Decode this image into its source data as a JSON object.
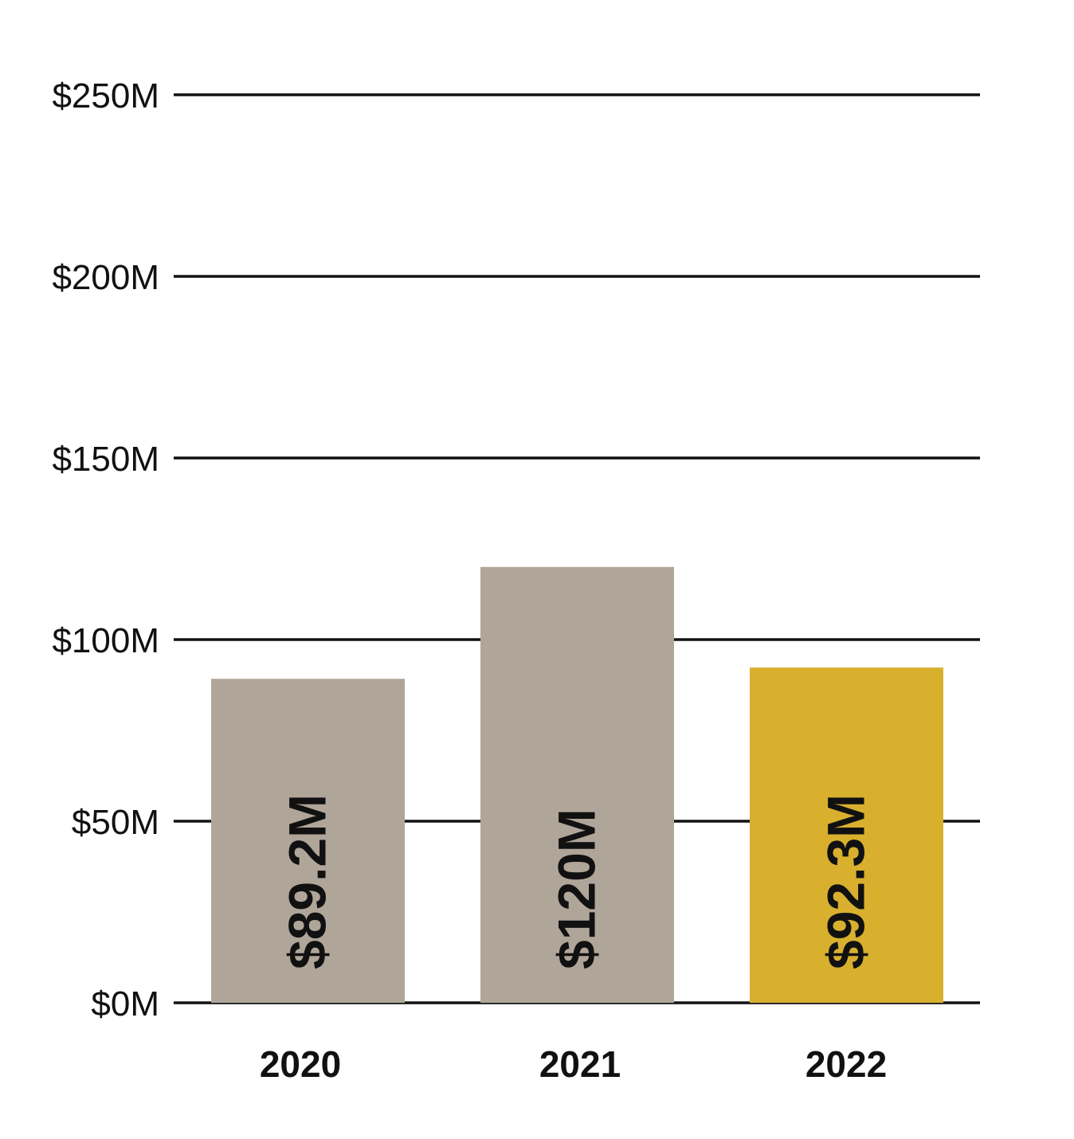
{
  "chart_data": {
    "type": "bar",
    "categories": [
      "2020",
      "2021",
      "2022"
    ],
    "values": [
      89.2,
      120,
      92.3
    ],
    "value_labels": [
      "$89.2M",
      "$120M",
      "$92.3M"
    ],
    "ylim": [
      0,
      250
    ],
    "yticks": [
      0,
      50,
      100,
      150,
      200,
      250
    ],
    "ytick_labels": [
      "$0M",
      "$50M",
      "$100M",
      "$150M",
      "$200M",
      "$250M"
    ],
    "grid": true,
    "colors": {
      "default_bar": "#b0a599",
      "highlight_bar": "#d8b02e",
      "gridline": "#111111",
      "text": "#111111"
    },
    "highlight_index": 2
  }
}
